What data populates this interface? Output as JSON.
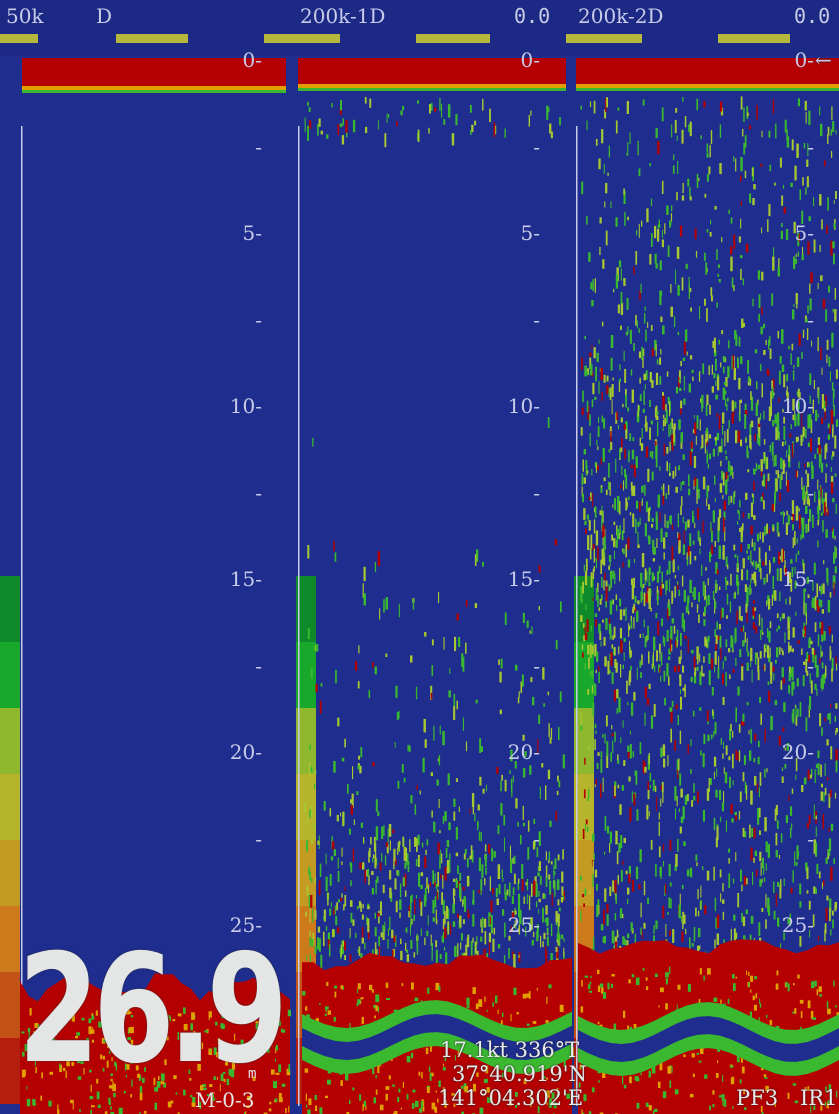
{
  "header": {
    "ch1_freq": "50k",
    "ch1_mode": "D",
    "ch2_label": "200k-1D",
    "ch2_value": "0.0",
    "ch3_label": "200k-2D",
    "ch3_value": "0.0"
  },
  "depth_ticks": [
    "0",
    "5",
    "10",
    "15",
    "20",
    "25"
  ],
  "minor_tick_mark": "-",
  "top_arrow": "←",
  "depth_readout": {
    "value": "26.9",
    "unit": "m",
    "mode": "M-0-3"
  },
  "nav": {
    "speed_course": "17.1kt 336°T",
    "latitude": "37°40.919'N",
    "longitude": "141°04.302'E"
  },
  "footer": {
    "pf": "PF3",
    "ir": "IR1"
  },
  "colors": {
    "background": "#1e2d8e",
    "echo_strong": "#b40000",
    "echo_medium": "#e0a000",
    "echo_weak": "#3ab830",
    "marker_yellow": "#b6b83c"
  },
  "color_scale": [
    "#0e8a2a",
    "#18a82c",
    "#8fb82e",
    "#b6b42a",
    "#c49b22",
    "#cc7a1c",
    "#c25216",
    "#b41e0e"
  ]
}
